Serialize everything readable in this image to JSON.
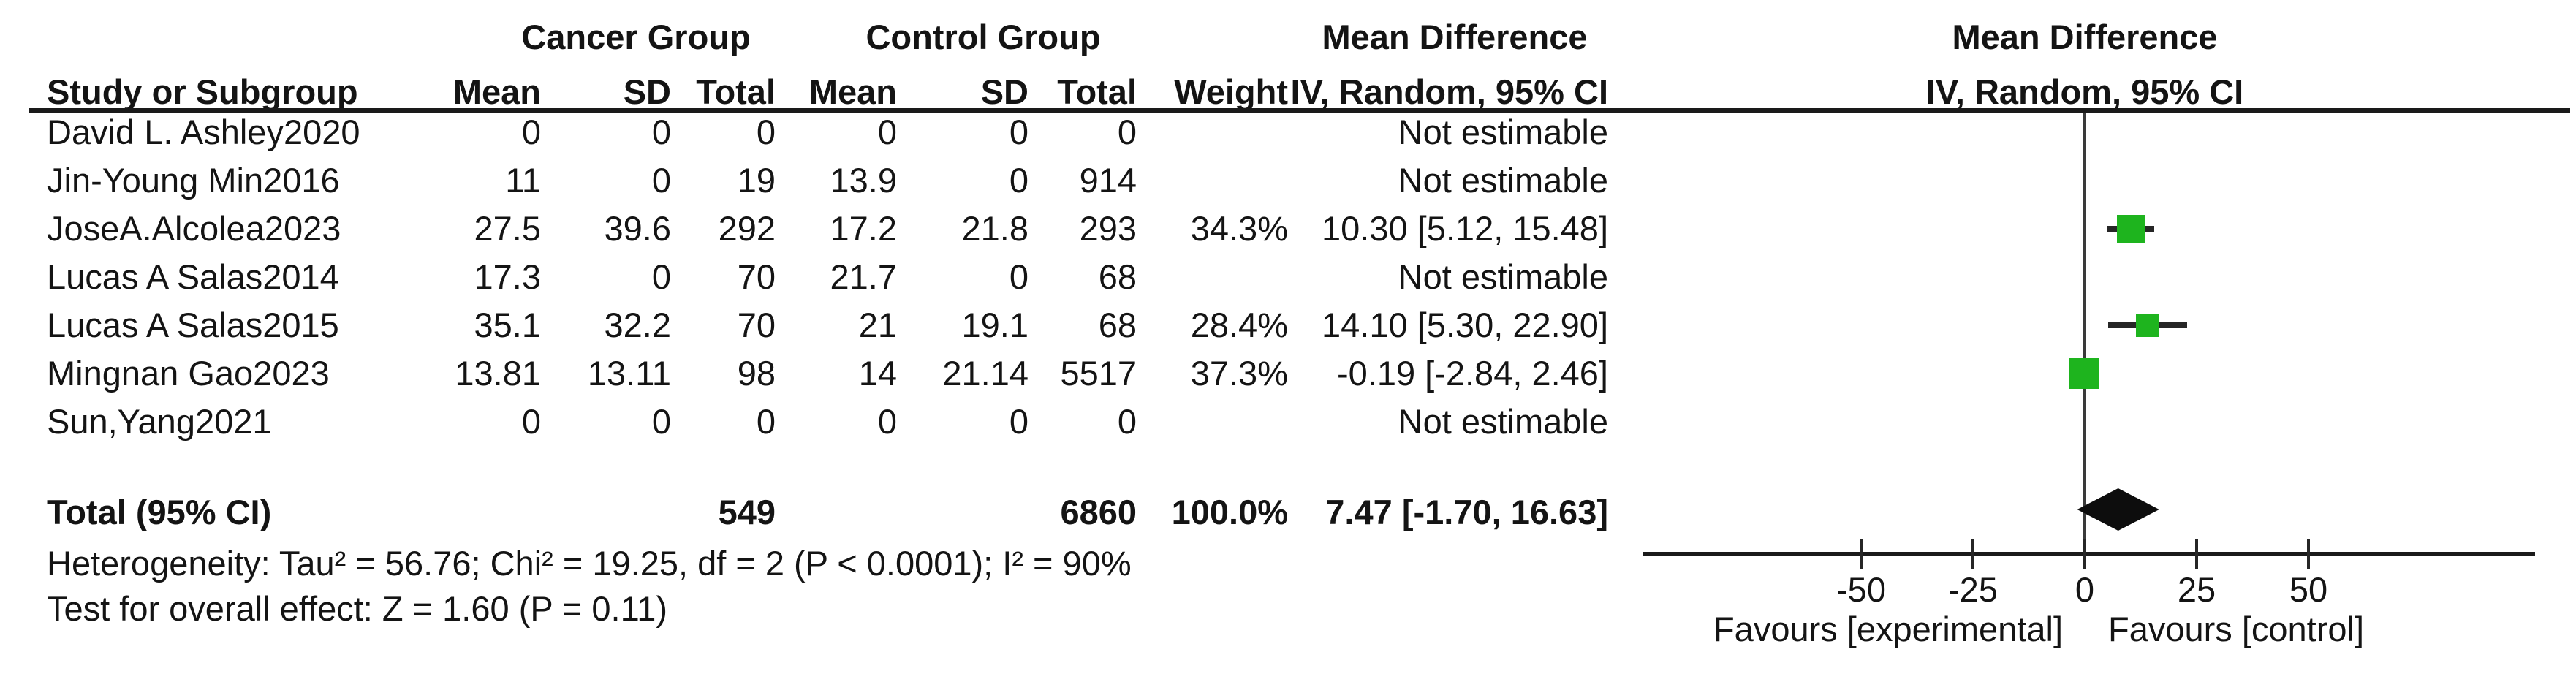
{
  "figure_colors": {
    "marker_green": "#1eb41e",
    "diamond_black": "#0d0d0d",
    "line_black": "#262626",
    "text_black": "#141414"
  },
  "header": {
    "study_col": "Study or Subgroup",
    "group1": "Cancer Group",
    "group2": "Control Group",
    "mean": "Mean",
    "sd": "SD",
    "total": "Total",
    "weight": "Weight",
    "md_title": "Mean Difference",
    "md_method": "IV, Random, 95% CI",
    "plot_title": "Mean Difference",
    "plot_method": "IV, Random, 95% CI"
  },
  "rows": [
    {
      "study": "David L. Ashley2020",
      "mean1": "0",
      "sd1": "0",
      "total1": "0",
      "mean2": "0",
      "sd2": "0",
      "total2": "0",
      "weight": "",
      "ci": "Not estimable",
      "est": null,
      "lo": null,
      "hi": null,
      "wv": null
    },
    {
      "study": "Jin-Young Min2016",
      "mean1": "11",
      "sd1": "0",
      "total1": "19",
      "mean2": "13.9",
      "sd2": "0",
      "total2": "914",
      "weight": "",
      "ci": "Not estimable",
      "est": null,
      "lo": null,
      "hi": null,
      "wv": null
    },
    {
      "study": "JoseA.Alcolea2023",
      "mean1": "27.5",
      "sd1": "39.6",
      "total1": "292",
      "mean2": "17.2",
      "sd2": "21.8",
      "total2": "293",
      "weight": "34.3%",
      "ci": "10.30 [5.12, 15.48]",
      "est": 10.3,
      "lo": 5.12,
      "hi": 15.48,
      "wv": 34.3
    },
    {
      "study": "Lucas A Salas2014",
      "mean1": "17.3",
      "sd1": "0",
      "total1": "70",
      "mean2": "21.7",
      "sd2": "0",
      "total2": "68",
      "weight": "",
      "ci": "Not estimable",
      "est": null,
      "lo": null,
      "hi": null,
      "wv": null
    },
    {
      "study": "Lucas A Salas2015",
      "mean1": "35.1",
      "sd1": "32.2",
      "total1": "70",
      "mean2": "21",
      "sd2": "19.1",
      "total2": "68",
      "weight": "28.4%",
      "ci": "14.10 [5.30, 22.90]",
      "est": 14.1,
      "lo": 5.3,
      "hi": 22.9,
      "wv": 28.4
    },
    {
      "study": "Mingnan Gao2023",
      "mean1": "13.81",
      "sd1": "13.11",
      "total1": "98",
      "mean2": "14",
      "sd2": "21.14",
      "total2": "5517",
      "weight": "37.3%",
      "ci": "-0.19 [-2.84, 2.46]",
      "est": -0.19,
      "lo": -2.84,
      "hi": 2.46,
      "wv": 37.3
    },
    {
      "study": "Sun,Yang2021",
      "mean1": "0",
      "sd1": "0",
      "total1": "0",
      "mean2": "0",
      "sd2": "0",
      "total2": "0",
      "weight": "",
      "ci": "Not estimable",
      "est": null,
      "lo": null,
      "hi": null,
      "wv": null
    }
  ],
  "total_row": {
    "label": "Total (95% CI)",
    "total1": "549",
    "total2": "6860",
    "weight": "100.0%",
    "ci": "7.47 [-1.70, 16.63]",
    "est": 7.47,
    "lo": -1.7,
    "hi": 16.63
  },
  "footnotes": {
    "heterogeneity": "Heterogeneity: Tau² = 56.76; Chi² = 19.25, df = 2 (P < 0.0001); I² = 90%",
    "overall_effect": "Test for overall effect: Z = 1.60 (P = 0.11)"
  },
  "axis": {
    "tick_values": [
      -50,
      -25,
      0,
      25,
      50
    ],
    "favours_left": "Favours [experimental]",
    "favours_right": "Favours [control]"
  },
  "chart_data": {
    "type": "forest",
    "effect_measure": "Mean Difference, IV, Random, 95% CI",
    "x_axis": {
      "ticks": [
        -50,
        -25,
        0,
        25,
        50
      ],
      "zero_line": 0,
      "label_left": "Favours [experimental]",
      "label_right": "Favours [control]"
    },
    "studies": [
      {
        "name": "David L. Ashley2020",
        "cancer": {
          "mean": 0,
          "sd": 0,
          "total": 0
        },
        "control": {
          "mean": 0,
          "sd": 0,
          "total": 0
        },
        "weight_pct": null,
        "estimate": null,
        "ci": "Not estimable"
      },
      {
        "name": "Jin-Young Min2016",
        "cancer": {
          "mean": 11,
          "sd": 0,
          "total": 19
        },
        "control": {
          "mean": 13.9,
          "sd": 0,
          "total": 914
        },
        "weight_pct": null,
        "estimate": null,
        "ci": "Not estimable"
      },
      {
        "name": "JoseA.Alcolea2023",
        "cancer": {
          "mean": 27.5,
          "sd": 39.6,
          "total": 292
        },
        "control": {
          "mean": 17.2,
          "sd": 21.8,
          "total": 293
        },
        "weight_pct": 34.3,
        "estimate": 10.3,
        "ci_low": 5.12,
        "ci_high": 15.48
      },
      {
        "name": "Lucas A Salas2014",
        "cancer": {
          "mean": 17.3,
          "sd": 0,
          "total": 70
        },
        "control": {
          "mean": 21.7,
          "sd": 0,
          "total": 68
        },
        "weight_pct": null,
        "estimate": null,
        "ci": "Not estimable"
      },
      {
        "name": "Lucas A Salas2015",
        "cancer": {
          "mean": 35.1,
          "sd": 32.2,
          "total": 70
        },
        "control": {
          "mean": 21,
          "sd": 19.1,
          "total": 68
        },
        "weight_pct": 28.4,
        "estimate": 14.1,
        "ci_low": 5.3,
        "ci_high": 22.9
      },
      {
        "name": "Mingnan Gao2023",
        "cancer": {
          "mean": 13.81,
          "sd": 13.11,
          "total": 98
        },
        "control": {
          "mean": 14,
          "sd": 21.14,
          "total": 5517
        },
        "weight_pct": 37.3,
        "estimate": -0.19,
        "ci_low": -2.84,
        "ci_high": 2.46
      },
      {
        "name": "Sun,Yang2021",
        "cancer": {
          "mean": 0,
          "sd": 0,
          "total": 0
        },
        "control": {
          "mean": 0,
          "sd": 0,
          "total": 0
        },
        "weight_pct": null,
        "estimate": null,
        "ci": "Not estimable"
      }
    ],
    "summary": {
      "label": "Total (95% CI)",
      "total_cancer": 549,
      "total_control": 6860,
      "weight_pct": 100.0,
      "estimate": 7.47,
      "ci_low": -1.7,
      "ci_high": 16.63
    },
    "heterogeneity": {
      "tau2": 56.76,
      "chi2": 19.25,
      "df": 2,
      "p": "< 0.0001",
      "i2_pct": 90
    },
    "overall_effect": {
      "z": 1.6,
      "p": 0.11
    }
  }
}
